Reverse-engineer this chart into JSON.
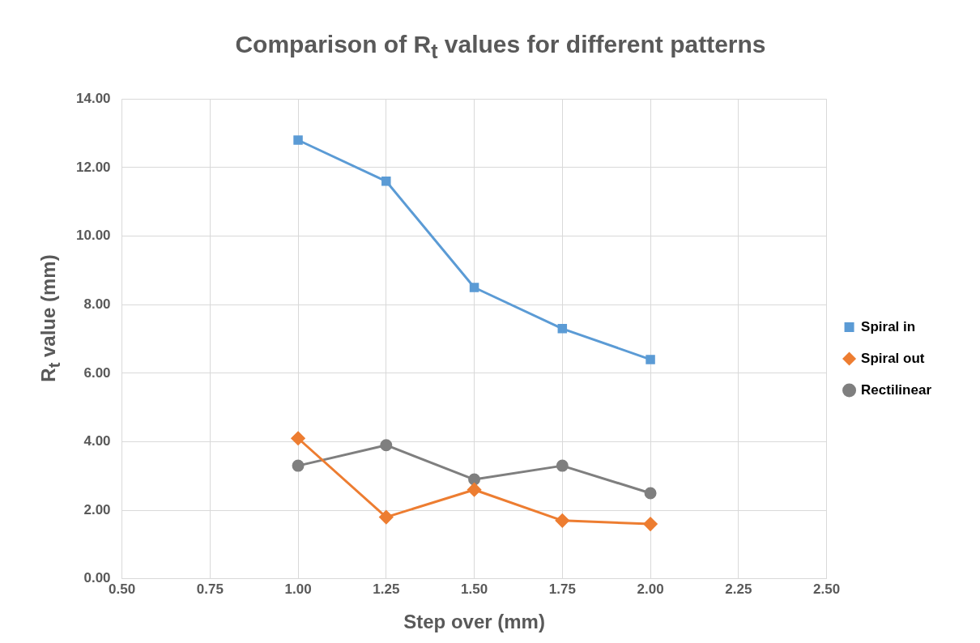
{
  "chart_data": {
    "type": "line",
    "title": "Comparison of R$_{t}$ values for different patterns",
    "xlabel": "Step over (mm)",
    "ylabel": "R$_{t}$ value (mm)",
    "x": [
      1.0,
      1.25,
      1.5,
      1.75,
      2.0
    ],
    "series": [
      {
        "name": "Spiral in",
        "color": "#5b9bd5",
        "marker": "square",
        "values": [
          12.8,
          11.6,
          8.5,
          7.3,
          6.4
        ]
      },
      {
        "name": "Spiral out",
        "color": "#ed7d31",
        "marker": "diamond",
        "values": [
          4.1,
          1.8,
          2.6,
          1.7,
          1.6
        ]
      },
      {
        "name": "Rectilinear",
        "color": "#7f7f7f",
        "marker": "circle",
        "values": [
          3.3,
          3.9,
          2.9,
          3.3,
          2.5
        ]
      }
    ],
    "xlim": [
      0.5,
      2.5
    ],
    "xticks": [
      {
        "value": 0.5,
        "label": "0.50"
      },
      {
        "value": 0.75,
        "label": "0.75"
      },
      {
        "value": 1,
        "label": "1.00"
      },
      {
        "value": 1.25,
        "label": "1.25"
      },
      {
        "value": 1.5,
        "label": "1.50"
      },
      {
        "value": 1.75,
        "label": "1.75"
      },
      {
        "value": 2,
        "label": "2.00"
      },
      {
        "value": 2.25,
        "label": "2.25"
      },
      {
        "value": 2.5,
        "label": "2.50"
      }
    ],
    "ylim": [
      0,
      14
    ],
    "yticks": [
      {
        "value": 0,
        "label": "0.00"
      },
      {
        "value": 2,
        "label": "2.00"
      },
      {
        "value": 4,
        "label": "4.00"
      },
      {
        "value": 6,
        "label": "6.00"
      },
      {
        "value": 8,
        "label": "8.00"
      },
      {
        "value": 10,
        "label": "10.00"
      },
      {
        "value": 12,
        "label": "12.00"
      },
      {
        "value": 14,
        "label": "14.00"
      }
    ],
    "grid": true,
    "legend": "right",
    "line_style": "solid"
  }
}
